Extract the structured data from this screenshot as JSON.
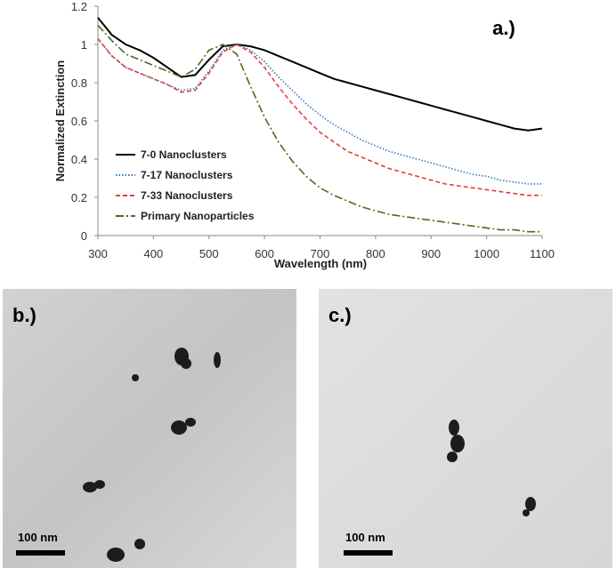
{
  "chart_data": {
    "type": "line",
    "annotation": "a.)",
    "xlabel": "Wavelength (nm)",
    "ylabel": "Normalized Extinction",
    "xlim": [
      300,
      1100
    ],
    "xticks": [
      300,
      400,
      500,
      600,
      700,
      800,
      900,
      1000,
      1100
    ],
    "ylim": [
      0,
      1.2
    ],
    "yticks": [
      0,
      0.2,
      0.4,
      0.6,
      0.8,
      1,
      1.2
    ],
    "legend": "lower-left",
    "x": [
      300,
      325,
      350,
      375,
      400,
      425,
      450,
      475,
      500,
      525,
      550,
      575,
      600,
      625,
      650,
      675,
      700,
      725,
      750,
      775,
      800,
      825,
      850,
      875,
      900,
      925,
      950,
      975,
      1000,
      1025,
      1050,
      1075,
      1100
    ],
    "series": [
      {
        "name": "7-0 Nanoclusters",
        "color": "#000000",
        "style": "solid",
        "values": [
          1.14,
          1.05,
          1.0,
          0.97,
          0.93,
          0.88,
          0.83,
          0.84,
          0.92,
          0.99,
          1.0,
          0.99,
          0.97,
          0.94,
          0.91,
          0.88,
          0.85,
          0.82,
          0.8,
          0.78,
          0.76,
          0.74,
          0.72,
          0.7,
          0.68,
          0.66,
          0.64,
          0.62,
          0.6,
          0.58,
          0.56,
          0.55,
          0.56
        ]
      },
      {
        "name": "7-17 Nanoclusters",
        "color": "#3a78b8",
        "style": "dotted",
        "values": [
          1.03,
          0.94,
          0.88,
          0.85,
          0.82,
          0.79,
          0.76,
          0.77,
          0.86,
          0.97,
          1.0,
          0.97,
          0.91,
          0.83,
          0.76,
          0.69,
          0.63,
          0.58,
          0.54,
          0.5,
          0.47,
          0.44,
          0.42,
          0.4,
          0.38,
          0.36,
          0.34,
          0.32,
          0.31,
          0.29,
          0.28,
          0.27,
          0.27
        ]
      },
      {
        "name": "7-33 Nanoclusters",
        "color": "#e04040",
        "style": "dashed",
        "values": [
          1.03,
          0.94,
          0.88,
          0.85,
          0.82,
          0.79,
          0.75,
          0.76,
          0.85,
          0.96,
          1.0,
          0.96,
          0.88,
          0.78,
          0.69,
          0.61,
          0.54,
          0.49,
          0.44,
          0.41,
          0.38,
          0.35,
          0.33,
          0.31,
          0.29,
          0.27,
          0.26,
          0.25,
          0.24,
          0.23,
          0.22,
          0.21,
          0.21
        ]
      },
      {
        "name": "Primary Nanoparticles",
        "color": "#4e6b1e",
        "style": "dashdot",
        "values": [
          1.1,
          1.02,
          0.95,
          0.92,
          0.89,
          0.86,
          0.83,
          0.87,
          0.97,
          1.0,
          0.95,
          0.78,
          0.62,
          0.49,
          0.39,
          0.31,
          0.25,
          0.21,
          0.18,
          0.15,
          0.13,
          0.11,
          0.1,
          0.09,
          0.08,
          0.07,
          0.06,
          0.05,
          0.04,
          0.03,
          0.03,
          0.02,
          0.02
        ]
      }
    ]
  },
  "panels": [
    {
      "label": "b.)",
      "scale_bar": "100 nm"
    },
    {
      "label": "c.)",
      "scale_bar": "100 nm"
    }
  ]
}
